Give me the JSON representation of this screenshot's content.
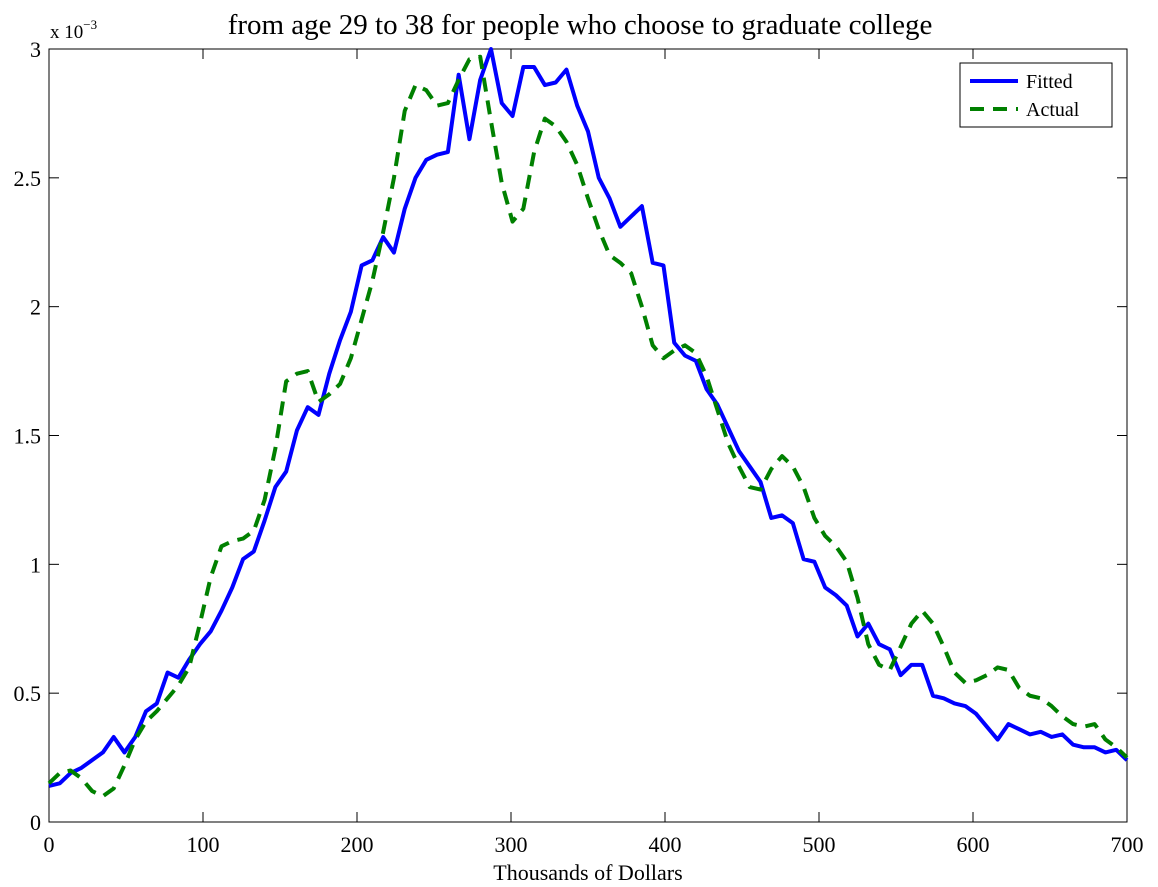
{
  "chart_data": {
    "type": "line",
    "title": "from age 29 to 38 for people who choose to graduate college",
    "x_label": "Thousands of Dollars",
    "y_multiplier": {
      "base": "x 10",
      "exponent": "−3"
    },
    "x": [
      0,
      7,
      14,
      21,
      28,
      35,
      42,
      49,
      56,
      63,
      70,
      77,
      84,
      91,
      98,
      105,
      112,
      119,
      126,
      133,
      140,
      147,
      154,
      161,
      168,
      175,
      182,
      189,
      196,
      203,
      210,
      217,
      224,
      231,
      238,
      245,
      252,
      259,
      266,
      273,
      280,
      287,
      294,
      301,
      308,
      315,
      322,
      329,
      336,
      343,
      350,
      357,
      364,
      371,
      378,
      385,
      392,
      399,
      406,
      413,
      420,
      427,
      434,
      441,
      448,
      455,
      462,
      469,
      476,
      483,
      490,
      497,
      504,
      511,
      518,
      525,
      532,
      539,
      546,
      553,
      560,
      567,
      574,
      581,
      588,
      595,
      602,
      609,
      616,
      623,
      630,
      637,
      644,
      651,
      658,
      665,
      672,
      679,
      686,
      693,
      700
    ],
    "series": [
      {
        "name": "Fitted",
        "color": "#0000ff",
        "dash": "solid",
        "values": [
          0.14,
          0.15,
          0.19,
          0.21,
          0.24,
          0.27,
          0.33,
          0.27,
          0.33,
          0.43,
          0.46,
          0.58,
          0.56,
          0.63,
          0.69,
          0.74,
          0.82,
          0.91,
          1.02,
          1.05,
          1.17,
          1.3,
          1.36,
          1.52,
          1.61,
          1.58,
          1.74,
          1.87,
          1.98,
          2.16,
          2.18,
          2.27,
          2.21,
          2.38,
          2.5,
          2.57,
          2.59,
          2.6,
          2.9,
          2.65,
          2.88,
          3.0,
          2.79,
          2.74,
          2.93,
          2.93,
          2.86,
          2.87,
          2.92,
          2.78,
          2.68,
          2.5,
          2.42,
          2.31,
          2.35,
          2.39,
          2.17,
          2.16,
          1.86,
          1.81,
          1.79,
          1.68,
          1.62,
          1.53,
          1.44,
          1.38,
          1.32,
          1.18,
          1.19,
          1.16,
          1.02,
          1.01,
          0.91,
          0.88,
          0.84,
          0.72,
          0.77,
          0.69,
          0.67,
          0.57,
          0.61,
          0.61,
          0.49,
          0.48,
          0.46,
          0.45,
          0.42,
          0.37,
          0.32,
          0.38,
          0.36,
          0.34,
          0.35,
          0.33,
          0.34,
          0.3,
          0.29,
          0.29,
          0.27,
          0.28,
          0.24
        ]
      },
      {
        "name": "Actual",
        "color": "#008000",
        "dash": "dashed",
        "values": [
          0.15,
          0.19,
          0.2,
          0.17,
          0.12,
          0.1,
          0.13,
          0.22,
          0.32,
          0.39,
          0.43,
          0.48,
          0.53,
          0.6,
          0.77,
          0.95,
          1.07,
          1.09,
          1.1,
          1.13,
          1.25,
          1.45,
          1.71,
          1.74,
          1.75,
          1.63,
          1.66,
          1.7,
          1.8,
          1.95,
          2.1,
          2.29,
          2.5,
          2.76,
          2.86,
          2.84,
          2.78,
          2.79,
          2.88,
          2.96,
          2.97,
          2.72,
          2.48,
          2.33,
          2.38,
          2.6,
          2.73,
          2.7,
          2.64,
          2.55,
          2.42,
          2.3,
          2.2,
          2.17,
          2.13,
          2.0,
          1.85,
          1.8,
          1.83,
          1.85,
          1.82,
          1.73,
          1.6,
          1.47,
          1.38,
          1.3,
          1.29,
          1.37,
          1.42,
          1.38,
          1.3,
          1.18,
          1.11,
          1.07,
          1.01,
          0.87,
          0.69,
          0.61,
          0.59,
          0.68,
          0.77,
          0.82,
          0.77,
          0.68,
          0.58,
          0.54,
          0.55,
          0.57,
          0.6,
          0.59,
          0.52,
          0.49,
          0.48,
          0.45,
          0.41,
          0.38,
          0.37,
          0.38,
          0.32,
          0.29,
          0.25
        ]
      }
    ],
    "xlim": [
      0,
      700
    ],
    "xticks": [
      0,
      100,
      200,
      300,
      400,
      500,
      600,
      700
    ],
    "ylim": [
      0,
      3
    ],
    "yticks": [
      0,
      0.5,
      1,
      1.5,
      2,
      2.5,
      3
    ],
    "grid": false,
    "legend": "upper right"
  }
}
